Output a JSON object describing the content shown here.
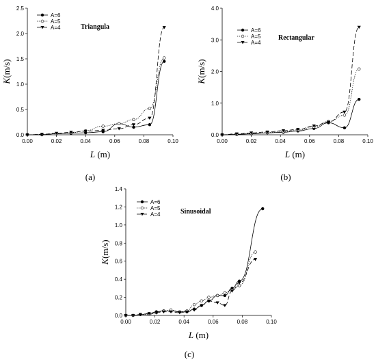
{
  "chart_data": [
    {
      "type": "line",
      "caption": "(a)",
      "title": "Triangula",
      "xlabel": "L (m)",
      "ylabel": "K(m/s)",
      "xlim": [
        0.0,
        0.1
      ],
      "ylim": [
        0.0,
        2.5
      ],
      "xticks": [
        "0.00",
        "0.02",
        "0.04",
        "0.06",
        "0.08",
        "0.10"
      ],
      "yticks": [
        "0.0",
        "0.5",
        "1.0",
        "1.5",
        "2.0",
        "2.5"
      ],
      "legend_position": "top-left",
      "series": [
        {
          "name": "A=6",
          "marker": "filled-circle",
          "line": "solid",
          "x": [
            0.0,
            0.01,
            0.02,
            0.03,
            0.04,
            0.052,
            0.063,
            0.073,
            0.084,
            0.094
          ],
          "y": [
            0.0,
            0.0,
            0.02,
            0.03,
            0.04,
            0.06,
            0.22,
            0.15,
            0.2,
            1.45
          ]
        },
        {
          "name": "A=5",
          "marker": "open-circle",
          "line": "dotted",
          "x": [
            0.0,
            0.01,
            0.02,
            0.03,
            0.04,
            0.052,
            0.063,
            0.073,
            0.084,
            0.094
          ],
          "y": [
            0.0,
            0.01,
            0.02,
            0.04,
            0.08,
            0.17,
            0.22,
            0.3,
            0.52,
            1.52
          ]
        },
        {
          "name": "A=4",
          "marker": "filled-triangle-down",
          "line": "dashed",
          "x": [
            0.0,
            0.01,
            0.02,
            0.03,
            0.04,
            0.052,
            0.063,
            0.073,
            0.084,
            0.094
          ],
          "y": [
            0.0,
            0.01,
            0.03,
            0.05,
            0.07,
            0.09,
            0.12,
            0.2,
            0.33,
            2.12
          ]
        }
      ]
    },
    {
      "type": "line",
      "caption": "(b)",
      "title": "Rectangular",
      "xlabel": "L (m)",
      "ylabel": "K(m/s)",
      "xlim": [
        0.0,
        0.1
      ],
      "ylim": [
        0.0,
        4.0
      ],
      "xticks": [
        "0.00",
        "0.02",
        "0.04",
        "0.06",
        "0.08",
        "0.10"
      ],
      "yticks": [
        "0.0",
        "1.0",
        "2.0",
        "3.0",
        "4.0"
      ],
      "legend_position": "top-left",
      "series": [
        {
          "name": "A=6",
          "marker": "filled-circle",
          "line": "solid",
          "x": [
            0.0,
            0.01,
            0.02,
            0.031,
            0.042,
            0.052,
            0.063,
            0.073,
            0.084,
            0.094
          ],
          "y": [
            0.0,
            0.01,
            0.03,
            0.06,
            0.08,
            0.12,
            0.2,
            0.38,
            0.22,
            1.12
          ]
        },
        {
          "name": "A=5",
          "marker": "open-circle",
          "line": "dotted",
          "x": [
            0.0,
            0.01,
            0.02,
            0.031,
            0.042,
            0.052,
            0.063,
            0.073,
            0.084,
            0.094
          ],
          "y": [
            0.0,
            0.02,
            0.04,
            0.07,
            0.1,
            0.15,
            0.25,
            0.42,
            0.62,
            2.08
          ]
        },
        {
          "name": "A=4",
          "marker": "filled-triangle-down",
          "line": "dashed",
          "x": [
            0.0,
            0.01,
            0.02,
            0.031,
            0.042,
            0.052,
            0.063,
            0.073,
            0.084,
            0.094
          ],
          "y": [
            0.0,
            0.03,
            0.06,
            0.09,
            0.13,
            0.17,
            0.28,
            0.4,
            0.72,
            3.4
          ]
        }
      ]
    },
    {
      "type": "line",
      "caption": "(c)",
      "title": "Sinusoidal",
      "xlabel": "L (m)",
      "ylabel": "K(m/s)",
      "xlim": [
        0.0,
        0.1
      ],
      "ylim": [
        0.0,
        1.4
      ],
      "xticks": [
        "0.00",
        "0.02",
        "0.04",
        "0.06",
        "0.08",
        "0.10"
      ],
      "yticks": [
        "0.0",
        "0.2",
        "0.4",
        "0.6",
        "0.8",
        "1.0",
        "1.2",
        "1.4"
      ],
      "legend_position": "top-left",
      "series": [
        {
          "name": "A=6",
          "marker": "filled-circle",
          "line": "solid",
          "x": [
            0.0,
            0.005,
            0.01,
            0.016,
            0.021,
            0.026,
            0.031,
            0.037,
            0.042,
            0.047,
            0.052,
            0.057,
            0.063,
            0.068,
            0.073,
            0.078,
            0.094
          ],
          "y": [
            0.0,
            0.0,
            0.01,
            0.02,
            0.04,
            0.05,
            0.05,
            0.04,
            0.04,
            0.07,
            0.11,
            0.16,
            0.22,
            0.22,
            0.3,
            0.38,
            1.18
          ]
        },
        {
          "name": "A=5",
          "marker": "open-circle",
          "line": "dotted",
          "x": [
            0.0,
            0.005,
            0.01,
            0.016,
            0.021,
            0.026,
            0.031,
            0.037,
            0.042,
            0.047,
            0.052,
            0.057,
            0.063,
            0.068,
            0.073,
            0.078,
            0.089
          ],
          "y": [
            0.0,
            0.0,
            0.01,
            0.01,
            0.03,
            0.05,
            0.06,
            0.04,
            0.05,
            0.12,
            0.16,
            0.2,
            0.22,
            0.25,
            0.28,
            0.33,
            0.7
          ]
        },
        {
          "name": "A=4",
          "marker": "filled-triangle-down",
          "line": "dashed",
          "x": [
            0.0,
            0.005,
            0.01,
            0.016,
            0.021,
            0.026,
            0.031,
            0.037,
            0.042,
            0.047,
            0.052,
            0.057,
            0.063,
            0.068,
            0.073,
            0.078,
            0.089
          ],
          "y": [
            0.0,
            0.0,
            0.01,
            0.02,
            0.03,
            0.04,
            0.04,
            0.03,
            0.04,
            0.06,
            0.11,
            0.16,
            0.14,
            0.11,
            0.27,
            0.36,
            0.62
          ]
        }
      ]
    }
  ]
}
